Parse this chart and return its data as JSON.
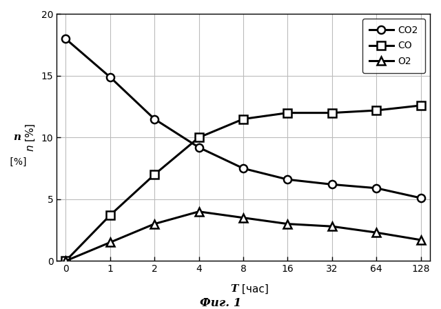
{
  "x_positions": [
    0,
    1,
    2,
    3,
    4,
    5,
    6,
    7,
    8
  ],
  "x_labels": [
    "0",
    "1",
    "2",
    "4",
    "8",
    "16",
    "32",
    "64",
    "128"
  ],
  "co2": {
    "x": [
      0,
      1,
      2,
      3,
      4,
      5,
      6,
      7,
      8
    ],
    "y": [
      18.0,
      14.9,
      11.5,
      9.2,
      7.5,
      6.6,
      6.2,
      5.9,
      5.1
    ],
    "label": "CO2",
    "marker": "o"
  },
  "co": {
    "x": [
      0,
      1,
      2,
      3,
      4,
      5,
      6,
      7,
      8
    ],
    "y": [
      0.0,
      3.7,
      7.0,
      10.0,
      11.5,
      12.0,
      12.0,
      12.2,
      12.6
    ],
    "label": "CO",
    "marker": "s"
  },
  "o2": {
    "x": [
      0,
      1,
      2,
      3,
      4,
      5,
      6,
      7,
      8
    ],
    "y": [
      0.0,
      1.5,
      3.0,
      4.0,
      3.5,
      3.0,
      2.8,
      2.3,
      1.7
    ],
    "label": "O2",
    "marker": "^"
  },
  "xlabel": "T [час]",
  "xlabel_italic_T": "T",
  "xlabel_rest": " [час]",
  "ylabel_italic": "n",
  "ylabel_rest": " [%]",
  "ylim": [
    0,
    20
  ],
  "yticks": [
    0,
    5,
    10,
    15,
    20
  ],
  "title_bottom": "Фиг. 1",
  "background_color": "#ffffff",
  "grid_color": "#bbbbbb",
  "linewidth": 2.2,
  "markersize": 8,
  "markeredgewidth": 1.8
}
